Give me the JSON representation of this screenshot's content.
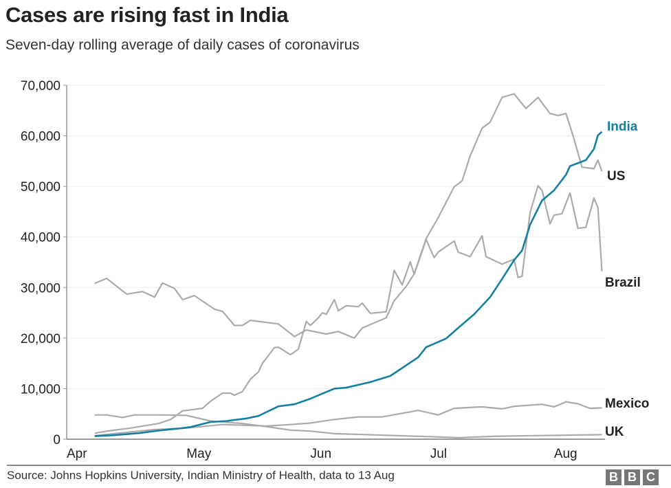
{
  "header": {
    "title": "Cases are rising fast in India",
    "subtitle": "Seven-day rolling average of daily cases of coronavirus"
  },
  "footer": {
    "source": "Source: Johns Hopkins University, Indian Ministry of Health, data to 13 Aug",
    "logo": "BBC"
  },
  "chart_data": {
    "type": "line",
    "title": "Cases are rising fast in India",
    "subtitle": "Seven-day rolling average of daily cases of coronavirus",
    "xlabel": "",
    "ylabel": "",
    "ylim": [
      0,
      70000
    ],
    "yticks": [
      0,
      10000,
      20000,
      30000,
      40000,
      50000,
      60000,
      70000
    ],
    "ytick_labels": [
      "0",
      "10,000",
      "20,000",
      "30,000",
      "40,000",
      "50,000",
      "60,000",
      "70,000"
    ],
    "xlim": [
      "1 Apr",
      "13 Aug"
    ],
    "xticks": [
      "1 Apr",
      "1 May",
      "1 Jun",
      "1 Jul",
      "1 Aug"
    ],
    "xtick_labels": [
      "Apr",
      "May",
      "Jun",
      "Jul",
      "Aug"
    ],
    "grid": true,
    "legend": "direct labels at line ends",
    "series": [
      {
        "name": "US",
        "color": "#aaaaaa",
        "points": [
          [
            "8 Apr",
            30800
          ],
          [
            "11 Apr",
            31800
          ],
          [
            "16 Apr",
            28700
          ],
          [
            "20 Apr",
            29200
          ],
          [
            "23 Apr",
            28100
          ],
          [
            "25 Apr",
            30900
          ],
          [
            "28 Apr",
            29800
          ],
          [
            "30 Apr",
            27600
          ],
          [
            "3 May",
            28400
          ],
          [
            "8 May",
            25700
          ],
          [
            "10 May",
            25300
          ],
          [
            "13 May",
            22500
          ],
          [
            "15 May",
            22500
          ],
          [
            "17 May",
            23500
          ],
          [
            "19 May",
            23300
          ],
          [
            "24 May",
            22800
          ],
          [
            "28 May",
            20300
          ],
          [
            "31 May",
            21600
          ],
          [
            "5 Jun",
            20800
          ],
          [
            "8 Jun",
            21300
          ],
          [
            "12 Jun",
            20000
          ],
          [
            "14 Jun",
            22000
          ],
          [
            "20 Jun",
            24000
          ],
          [
            "22 Jun",
            27400
          ],
          [
            "25 Jun",
            30200
          ],
          [
            "27 Jun",
            32700
          ],
          [
            "30 Jun",
            39700
          ],
          [
            "3 Jul",
            43800
          ],
          [
            "7 Jul",
            49900
          ],
          [
            "9 Jul",
            51100
          ],
          [
            "11 Jul",
            56000
          ],
          [
            "14 Jul",
            61500
          ],
          [
            "16 Jul",
            62700
          ],
          [
            "19 Jul",
            67600
          ],
          [
            "22 Jul",
            68300
          ],
          [
            "25 Jul",
            65400
          ],
          [
            "28 Jul",
            67600
          ],
          [
            "31 Jul",
            64400
          ],
          [
            "2 Aug",
            64000
          ],
          [
            "4 Aug",
            64400
          ],
          [
            "6 Aug",
            59400
          ],
          [
            "8 Aug",
            53800
          ],
          [
            "11 Aug",
            53500
          ],
          [
            "12 Aug",
            55200
          ],
          [
            "13 Aug",
            53000
          ]
        ]
      },
      {
        "name": "Brazil",
        "color": "#aaaaaa",
        "points": [
          [
            "8 Apr",
            1200
          ],
          [
            "12 Apr",
            1700
          ],
          [
            "17 Apr",
            2200
          ],
          [
            "20 Apr",
            2600
          ],
          [
            "24 Apr",
            3100
          ],
          [
            "27 Apr",
            3900
          ],
          [
            "30 Apr",
            5600
          ],
          [
            "5 May",
            6100
          ],
          [
            "7 May",
            7500
          ],
          [
            "10 May",
            9100
          ],
          [
            "12 May",
            9100
          ],
          [
            "13 May",
            8700
          ],
          [
            "15 May",
            9400
          ],
          [
            "17 May",
            11900
          ],
          [
            "19 May",
            13300
          ],
          [
            "20 May",
            15000
          ],
          [
            "23 May",
            18100
          ],
          [
            "24 May",
            18200
          ],
          [
            "27 May",
            16700
          ],
          [
            "29 May",
            17800
          ],
          [
            "31 May",
            23300
          ],
          [
            "1 Jun",
            22500
          ],
          [
            "3 Jun",
            24000
          ],
          [
            "4 Jun",
            25000
          ],
          [
            "5 Jun",
            24700
          ],
          [
            "7 Jun",
            27600
          ],
          [
            "8 Jun",
            25400
          ],
          [
            "10 Jun",
            26400
          ],
          [
            "13 Jun",
            26200
          ],
          [
            "14 Jun",
            26900
          ],
          [
            "16 Jun",
            24900
          ],
          [
            "20 Jun",
            25200
          ],
          [
            "22 Jun",
            33400
          ],
          [
            "24 Jun",
            30500
          ],
          [
            "26 Jun",
            35100
          ],
          [
            "27 Jun",
            32600
          ],
          [
            "30 Jun",
            39500
          ],
          [
            "2 Jul",
            35900
          ],
          [
            "3 Jul",
            37000
          ],
          [
            "7 Jul",
            39200
          ],
          [
            "8 Jul",
            37000
          ],
          [
            "11 Jul",
            36100
          ],
          [
            "14 Jul",
            40200
          ],
          [
            "15 Jul",
            36100
          ],
          [
            "19 Jul",
            34600
          ],
          [
            "22 Jul",
            35600
          ],
          [
            "23 Jul",
            32000
          ],
          [
            "24 Jul",
            32200
          ],
          [
            "26 Jul",
            44800
          ],
          [
            "28 Jul",
            50100
          ],
          [
            "29 Jul",
            49200
          ],
          [
            "31 Jul",
            42600
          ],
          [
            "1 Aug",
            44300
          ],
          [
            "3 Aug",
            44600
          ],
          [
            "5 Aug",
            48700
          ],
          [
            "7 Aug",
            41700
          ],
          [
            "9 Aug",
            41900
          ],
          [
            "11 Aug",
            47700
          ],
          [
            "12 Aug",
            45800
          ],
          [
            "13 Aug",
            33200
          ]
        ]
      },
      {
        "name": "Mexico",
        "color": "#aaaaaa",
        "points": [
          [
            "8 Apr",
            700
          ],
          [
            "14 Apr",
            1200
          ],
          [
            "23 Apr",
            1900
          ],
          [
            "1 May",
            2200
          ],
          [
            "10 May",
            2900
          ],
          [
            "21 May",
            2600
          ],
          [
            "27 May",
            2900
          ],
          [
            "1 Jun",
            3200
          ],
          [
            "7 Jun",
            3900
          ],
          [
            "13 Jun",
            4400
          ],
          [
            "19 Jun",
            4400
          ],
          [
            "28 Jun",
            5700
          ],
          [
            "3 Jul",
            4800
          ],
          [
            "7 Jul",
            6100
          ],
          [
            "14 Jul",
            6400
          ],
          [
            "19 Jul",
            6000
          ],
          [
            "22 Jul",
            6500
          ],
          [
            "29 Jul",
            6900
          ],
          [
            "1 Aug",
            6400
          ],
          [
            "4 Aug",
            7400
          ],
          [
            "7 Aug",
            7000
          ],
          [
            "10 Aug",
            6100
          ],
          [
            "13 Aug",
            6200
          ]
        ]
      },
      {
        "name": "UK",
        "color": "#aaaaaa",
        "points": [
          [
            "8 Apr",
            4800
          ],
          [
            "11 Apr",
            4800
          ],
          [
            "15 Apr",
            4300
          ],
          [
            "18 Apr",
            4800
          ],
          [
            "25 Apr",
            4800
          ],
          [
            "1 May",
            4700
          ],
          [
            "7 May",
            3600
          ],
          [
            "15 May",
            3100
          ],
          [
            "21 May",
            2500
          ],
          [
            "27 May",
            1800
          ],
          [
            "1 Jun",
            1600
          ],
          [
            "7 Jun",
            1100
          ],
          [
            "1 Jul",
            500
          ],
          [
            "8 Jul",
            300
          ],
          [
            "18 Jul",
            600
          ],
          [
            "13 Aug",
            900
          ]
        ]
      },
      {
        "name": "India",
        "color": "#1380a1",
        "points": [
          [
            "8 Apr",
            600
          ],
          [
            "13 Apr",
            800
          ],
          [
            "19 Apr",
            1200
          ],
          [
            "24 Apr",
            1700
          ],
          [
            "30 Apr",
            2200
          ],
          [
            "2 May",
            2400
          ],
          [
            "7 May",
            3400
          ],
          [
            "11 May",
            3600
          ],
          [
            "16 May",
            4100
          ],
          [
            "19 May",
            4600
          ],
          [
            "24 May",
            6500
          ],
          [
            "28 May",
            6900
          ],
          [
            "1 Jun",
            8000
          ],
          [
            "7 Jun",
            10000
          ],
          [
            "10 Jun",
            10200
          ],
          [
            "16 Jun",
            11300
          ],
          [
            "21 Jun",
            12500
          ],
          [
            "28 Jun",
            16200
          ],
          [
            "30 Jun",
            18200
          ],
          [
            "5 Jul",
            19900
          ],
          [
            "8 Jul",
            22000
          ],
          [
            "12 Jul",
            24700
          ],
          [
            "16 Jul",
            28100
          ],
          [
            "19 Jul",
            31700
          ],
          [
            "22 Jul",
            35400
          ],
          [
            "24 Jul",
            37300
          ],
          [
            "26 Jul",
            42400
          ],
          [
            "29 Jul",
            47200
          ],
          [
            "1 Aug",
            49200
          ],
          [
            "4 Aug",
            52300
          ],
          [
            "5 Aug",
            54000
          ],
          [
            "9 Aug",
            55200
          ],
          [
            "11 Aug",
            57400
          ],
          [
            "12 Aug",
            60100
          ],
          [
            "13 Aug",
            60800
          ]
        ]
      }
    ]
  }
}
